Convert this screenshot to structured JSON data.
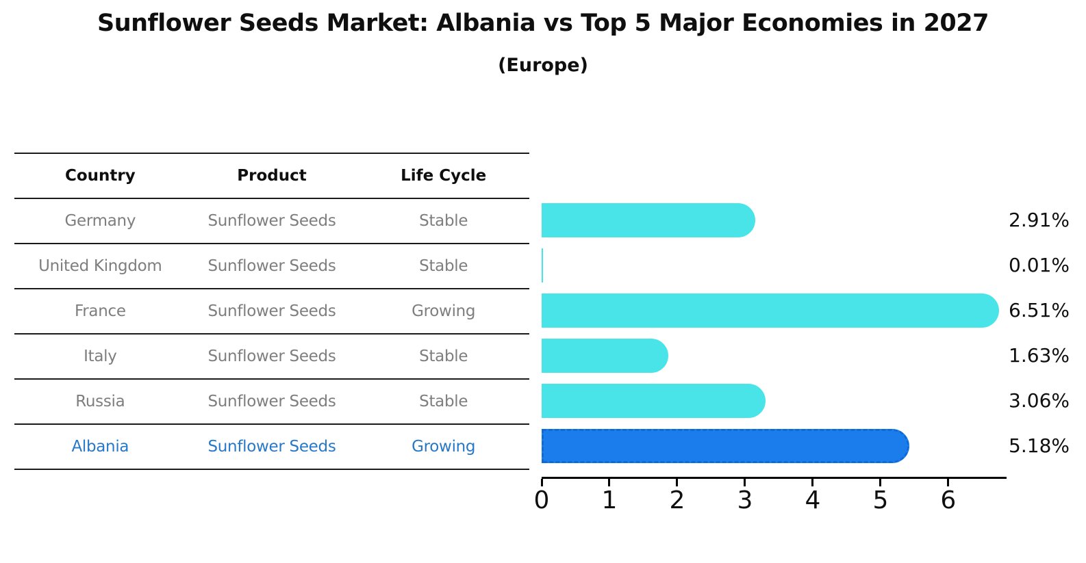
{
  "title": "Sunflower Seeds Market: Albania vs Top 5 Major Economies in 2027",
  "subtitle": "(Europe)",
  "table": {
    "headers": [
      "Country",
      "Product",
      "Life Cycle"
    ],
    "rows": [
      {
        "country": "Germany",
        "product": "Sunflower Seeds",
        "life_cycle": "Stable",
        "highlight": false
      },
      {
        "country": "United Kingdom",
        "product": "Sunflower Seeds",
        "life_cycle": "Stable",
        "highlight": false
      },
      {
        "country": "France",
        "product": "Sunflower Seeds",
        "life_cycle": "Growing",
        "highlight": false
      },
      {
        "country": "Italy",
        "product": "Sunflower Seeds",
        "life_cycle": "Stable",
        "highlight": false
      },
      {
        "country": "Russia",
        "product": "Sunflower Seeds",
        "life_cycle": "Stable",
        "highlight": false
      },
      {
        "country": "Albania",
        "product": "Sunflower Seeds",
        "life_cycle": "Growing",
        "highlight": true
      }
    ]
  },
  "chart_data": {
    "type": "bar",
    "orientation": "horizontal",
    "title": "Sunflower Seeds Market: Albania vs Top 5 Major Economies in 2027",
    "subtitle": "(Europe)",
    "categories": [
      "Germany",
      "United Kingdom",
      "France",
      "Italy",
      "Russia",
      "Albania"
    ],
    "values": [
      2.91,
      0.01,
      6.51,
      1.63,
      3.06,
      5.18
    ],
    "value_labels": [
      "2.91%",
      "0.01%",
      "6.51%",
      "1.63%",
      "3.06%",
      "5.18%"
    ],
    "xlim": [
      0,
      6.86
    ],
    "xticks": [
      0,
      1,
      2,
      3,
      4,
      5,
      6
    ],
    "grid": false,
    "legend": false,
    "bar_color": "#48e4e8",
    "highlight_color": "#1b7cec",
    "highlight_index": 5,
    "highlight_text_color": "#2878c8"
  }
}
